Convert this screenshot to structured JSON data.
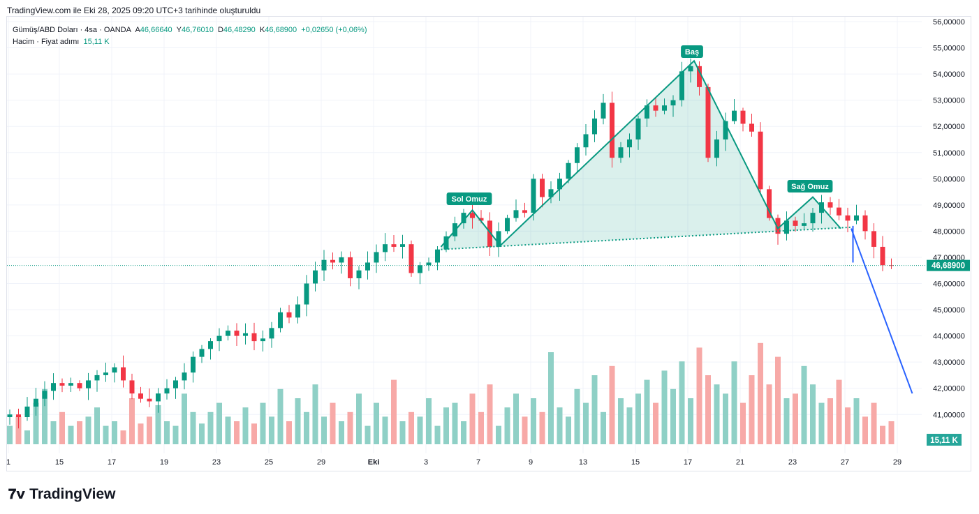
{
  "title": "TradingView.com ile Eki 28, 2025 09:20 UTC+3 tarihinde oluşturuldu",
  "legend": {
    "symbol": "Gümüş/ABD Doları · 4sa · OANDA",
    "o_label": "A",
    "o": "46,66640",
    "h_label": "Y",
    "h": "46,76010",
    "l_label": "D",
    "l": "46,48290",
    "c_label": "K",
    "c": "46,68900",
    "change": "+0,02650 (+0,06%)",
    "volume_label": "Hacim · Fiyat adımı",
    "volume": "15,11 K"
  },
  "price_axis": [
    "56,00000",
    "55,00000",
    "54,00000",
    "53,00000",
    "52,00000",
    "51,00000",
    "50,00000",
    "49,00000",
    "48,00000",
    "47,00000",
    "46,00000",
    "45,00000",
    "44,00000",
    "43,00000",
    "42,00000",
    "41,00000"
  ],
  "price_axis_values": [
    56,
    55,
    54,
    53,
    52,
    51,
    50,
    49,
    48,
    47,
    46,
    45,
    44,
    43,
    42,
    41
  ],
  "last_price_label": "46,68900",
  "last_price": 46.689,
  "volume_badge": "15,11 K",
  "time_axis": [
    "1",
    "15",
    "17",
    "19",
    "23",
    "25",
    "29",
    "Eki",
    "3",
    "7",
    "9",
    "13",
    "15",
    "17",
    "21",
    "23",
    "27",
    "29"
  ],
  "closes": [
    41.0,
    40.9,
    41.3,
    41.6,
    41.9,
    42.2,
    42.1,
    42.2,
    42.0,
    42.3,
    42.5,
    42.6,
    42.8,
    42.3,
    41.8,
    41.6,
    41.5,
    41.8,
    42.0,
    42.3,
    42.6,
    43.2,
    43.5,
    43.8,
    44.0,
    44.2,
    44.0,
    44.1,
    43.8,
    43.9,
    44.3,
    44.9,
    44.7,
    45.2,
    46.0,
    46.5,
    46.9,
    46.8,
    47.0,
    46.2,
    46.5,
    46.8,
    47.2,
    47.5,
    47.4,
    47.5,
    46.4,
    46.7,
    46.8,
    47.3,
    47.8,
    48.3,
    48.7,
    48.5,
    48.4,
    47.4,
    48.0,
    48.5,
    48.8,
    48.7,
    50.0,
    49.3,
    49.6,
    50.0,
    50.6,
    51.2,
    51.7,
    52.3,
    52.9,
    50.8,
    51.2,
    51.5,
    52.3,
    52.8,
    52.6,
    52.8,
    53.0,
    54.1,
    54.3,
    53.5,
    50.8,
    51.5,
    52.2,
    52.6,
    52.1,
    51.8,
    49.6,
    48.5,
    47.9,
    48.4,
    48.2,
    48.3,
    48.7,
    49.1,
    48.9,
    48.6,
    48.4,
    48.6,
    48.0,
    47.4,
    46.7,
    46.689
  ],
  "volumes": [
    8,
    12,
    6,
    18,
    24,
    10,
    14,
    8,
    10,
    12,
    16,
    8,
    10,
    6,
    20,
    9,
    12,
    17,
    10,
    8,
    22,
    14,
    9,
    14,
    18,
    12,
    10,
    16,
    9,
    18,
    12,
    24,
    10,
    20,
    14,
    26,
    12,
    18,
    10,
    14,
    22,
    8,
    18,
    12,
    28,
    10,
    14,
    12,
    20,
    8,
    16,
    18,
    10,
    22,
    14,
    26,
    8,
    16,
    22,
    12,
    20,
    14,
    40,
    16,
    12,
    24,
    18,
    30,
    14,
    34,
    20,
    16,
    22,
    28,
    18,
    32,
    24,
    36,
    20,
    42,
    30,
    26,
    22,
    36,
    18,
    30,
    44,
    26,
    38,
    20,
    22,
    34,
    26,
    18,
    20,
    28,
    16,
    20,
    12,
    18,
    8,
    10
  ],
  "pattern": {
    "labels": {
      "left": "Sol Omuz",
      "head": "Baş",
      "right": "Sağ Omuz"
    },
    "line": [
      [
        49.4,
        47.4
      ],
      [
        53,
        48.8
      ],
      [
        56.2,
        47.45
      ],
      [
        78.4,
        54.5
      ],
      [
        88,
        48.1
      ],
      [
        92,
        49.3
      ],
      [
        95.2,
        48.1
      ]
    ],
    "neckline": [
      [
        49.4,
        47.3
      ],
      [
        96.4,
        48.15
      ]
    ],
    "projection": [
      [
        96.4,
        48.1
      ],
      [
        103.4,
        41.8
      ]
    ],
    "drop": [
      [
        96.6,
        48.2
      ],
      [
        96.6,
        46.8
      ]
    ],
    "colors": {
      "up": "#089981",
      "down": "#f23645",
      "pattern": "#089981",
      "projection": "#2962ff"
    }
  },
  "logo": "TradingView"
}
